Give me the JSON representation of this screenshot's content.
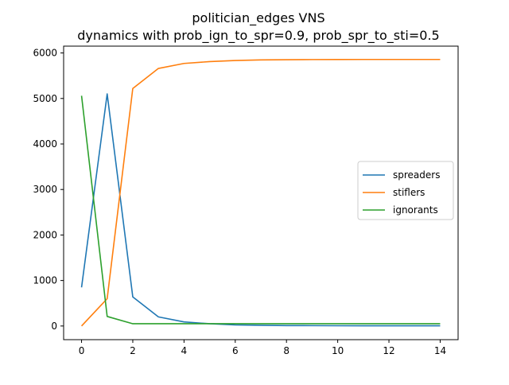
{
  "chart_data": {
    "type": "line",
    "title": "politician_edges VNS",
    "subtitle": "dynamics with prob_ign_to_spr=0.9, prob_spr_to_sti=0.5",
    "xlabel": "",
    "ylabel": "",
    "xlim": [
      -0.7,
      14.7
    ],
    "ylim": [
      -300,
      6150
    ],
    "xticks": [
      0,
      2,
      4,
      6,
      8,
      10,
      12,
      14
    ],
    "yticks": [
      0,
      1000,
      2000,
      3000,
      4000,
      5000,
      6000
    ],
    "grid": false,
    "legend_position": "center-right",
    "x": [
      0,
      1,
      2,
      3,
      4,
      5,
      6,
      7,
      8,
      9,
      10,
      11,
      12,
      13,
      14
    ],
    "series": [
      {
        "name": "spreaders",
        "color": "#1f77b4",
        "values": [
          850,
          5100,
          640,
          200,
          90,
          50,
          25,
          15,
          10,
          8,
          6,
          5,
          5,
          5,
          5
        ]
      },
      {
        "name": "stiflers",
        "color": "#ff7f0e",
        "values": [
          0,
          600,
          5220,
          5660,
          5770,
          5810,
          5835,
          5848,
          5852,
          5855,
          5856,
          5857,
          5857,
          5857,
          5857
        ]
      },
      {
        "name": "ignorants",
        "color": "#2ca02c",
        "values": [
          5060,
          210,
          50,
          50,
          50,
          50,
          50,
          50,
          50,
          50,
          50,
          50,
          50,
          50,
          50
        ]
      }
    ]
  }
}
